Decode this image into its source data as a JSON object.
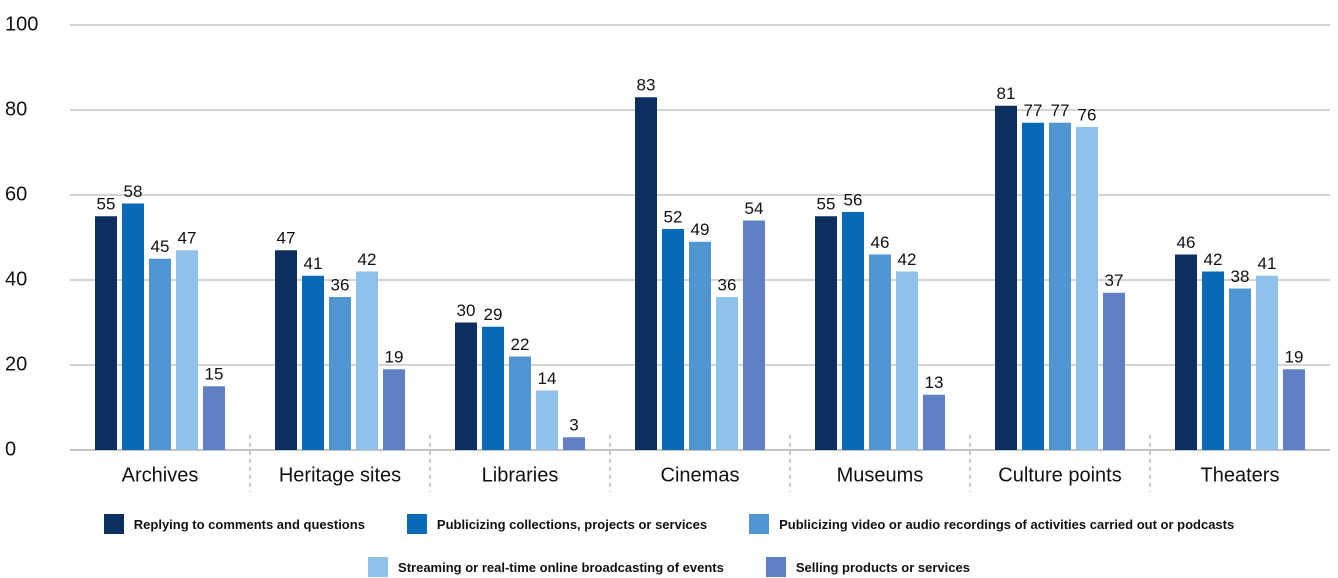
{
  "chart_data": {
    "type": "bar",
    "categories": [
      "Archives",
      "Heritage sites",
      "Libraries",
      "Cinemas",
      "Museums",
      "Culture points",
      "Theaters"
    ],
    "series": [
      {
        "name": "Replying to comments and questions",
        "color": "#0b2f5e",
        "values": [
          55,
          47,
          30,
          83,
          55,
          81,
          46
        ]
      },
      {
        "name": "Publicizing collections, projects or services",
        "color": "#0869b6",
        "values": [
          58,
          41,
          29,
          52,
          56,
          77,
          42
        ]
      },
      {
        "name": "Publicizing video or audio recordings of activities carried out or podcasts",
        "color": "#5096d2",
        "values": [
          45,
          36,
          22,
          49,
          46,
          77,
          38
        ]
      },
      {
        "name": "Streaming or real-time online broadcasting of events",
        "color": "#90c1ea",
        "values": [
          47,
          42,
          14,
          36,
          42,
          76,
          41
        ]
      },
      {
        "name": "Selling products or services",
        "color": "#5f80c4",
        "values": [
          15,
          19,
          3,
          54,
          13,
          37,
          19
        ]
      }
    ],
    "ylim": [
      0,
      100
    ],
    "yticks": [
      0,
      20,
      40,
      60,
      80,
      100
    ],
    "grid": true
  }
}
